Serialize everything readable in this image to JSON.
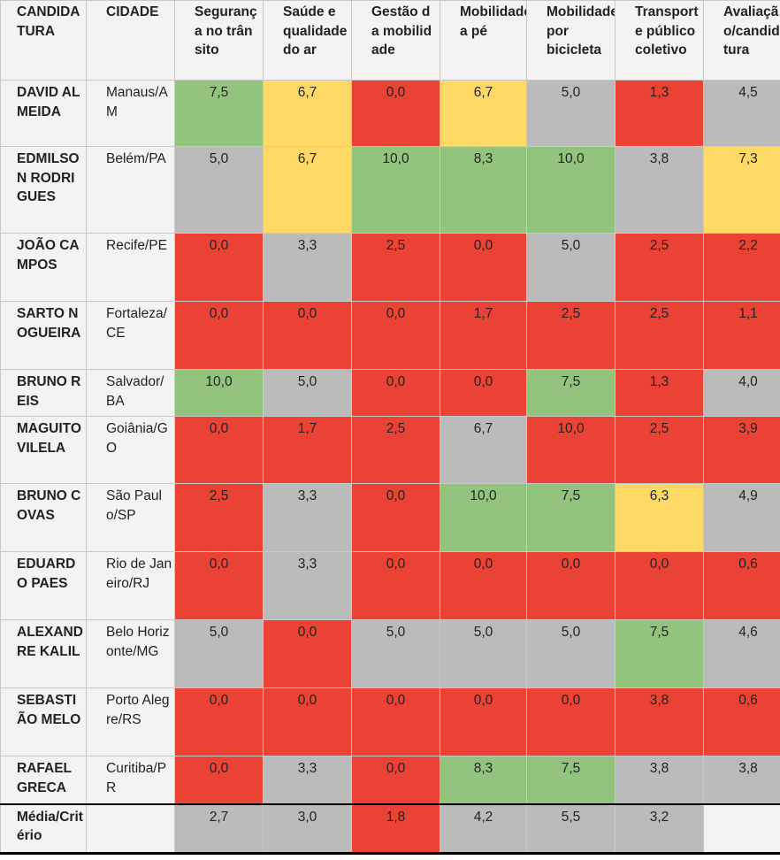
{
  "headers": [
    "CANDIDATURA",
    "CIDADE",
    "Segurança no trânsito",
    "Saúde e qualidade do ar",
    "Gestão da mobilidade",
    "Mobilidade a pé",
    "Mobilidade por bicicleta",
    "Transporte público coletivo",
    "Avaliação/candidatura"
  ],
  "rows": [
    {
      "name": "DAVID ALMEIDA",
      "city": "Manaus/AM",
      "values": [
        "7,5",
        "6,7",
        "0,0",
        "6,7",
        "5,0",
        "1,3",
        "4,5"
      ],
      "colors": [
        "green",
        "yellow",
        "red",
        "yellow",
        "gray",
        "red",
        "gray"
      ]
    },
    {
      "name": "EDMILSON RODRIGUES",
      "city": "Belém/PA",
      "values": [
        "5,0",
        "6,7",
        "10,0",
        "8,3",
        "10,0",
        "3,8",
        "7,3"
      ],
      "colors": [
        "gray",
        "yellow",
        "green",
        "green",
        "green",
        "gray",
        "yellow"
      ]
    },
    {
      "name": "JOÃO CAMPOS",
      "city": "Recife/PE",
      "values": [
        "0,0",
        "3,3",
        "2,5",
        "0,0",
        "5,0",
        "2,5",
        "2,2"
      ],
      "colors": [
        "red",
        "gray",
        "red",
        "red",
        "gray",
        "red",
        "red"
      ]
    },
    {
      "name": "SARTO NOGUEIRA",
      "city": "Fortaleza/CE",
      "values": [
        "0,0",
        "0,0",
        "0,0",
        "1,7",
        "2,5",
        "2,5",
        "1,1"
      ],
      "colors": [
        "red",
        "red",
        "red",
        "red",
        "red",
        "red",
        "red"
      ]
    },
    {
      "name": "BRUNO REIS",
      "city": "Salvador/BA",
      "values": [
        "10,0",
        "5,0",
        "0,0",
        "0,0",
        "7,5",
        "1,3",
        "4,0"
      ],
      "colors": [
        "green",
        "gray",
        "red",
        "red",
        "green",
        "red",
        "gray"
      ]
    },
    {
      "name": "MAGUITO VILELA",
      "city": "Goiânia/GO",
      "values": [
        "0,0",
        "1,7",
        "2,5",
        "6,7",
        "10,0",
        "2,5",
        "3,9"
      ],
      "colors": [
        "red",
        "red",
        "red",
        "gray",
        "red",
        "red",
        "red"
      ]
    },
    {
      "name": "BRUNO COVAS",
      "city": "São Paulo/SP",
      "values": [
        "2,5",
        "3,3",
        "0,0",
        "10,0",
        "7,5",
        "6,3",
        "4,9"
      ],
      "colors": [
        "red",
        "gray",
        "red",
        "green",
        "green",
        "yellow",
        "gray"
      ]
    },
    {
      "name": "EDUARDO PAES",
      "city": "Rio de Janeiro/RJ",
      "values": [
        "0,0",
        "3,3",
        "0,0",
        "0,0",
        "0,0",
        "0,0",
        "0,6"
      ],
      "colors": [
        "red",
        "gray",
        "red",
        "red",
        "red",
        "red",
        "red"
      ]
    },
    {
      "name": "ALEXANDRE KALIL",
      "city": "Belo Horizonte/MG",
      "values": [
        "5,0",
        "0,0",
        "5,0",
        "5,0",
        "5,0",
        "7,5",
        "4,6"
      ],
      "colors": [
        "gray",
        "red",
        "gray",
        "gray",
        "gray",
        "green",
        "gray"
      ]
    },
    {
      "name": "SEBASTIÃO MELO",
      "city": "Porto Alegre/RS",
      "values": [
        "0,0",
        "0,0",
        "0,0",
        "0,0",
        "0,0",
        "3,8",
        "0,6"
      ],
      "colors": [
        "red",
        "red",
        "red",
        "red",
        "red",
        "red",
        "red"
      ]
    },
    {
      "name": "RAFAEL GRECA",
      "city": "Curitiba/PR",
      "values": [
        "0,0",
        "3,3",
        "0,0",
        "8,3",
        "7,5",
        "3,8",
        "3,8"
      ],
      "colors": [
        "red",
        "gray",
        "red",
        "green",
        "green",
        "gray",
        "gray"
      ]
    }
  ],
  "footer": {
    "label": "Média/Critério",
    "city": "",
    "values": [
      "2,7",
      "3,0",
      "1,8",
      "4,2",
      "5,5",
      "3,2",
      ""
    ],
    "colors": [
      "gray",
      "gray",
      "red",
      "gray",
      "gray",
      "gray",
      "blank"
    ]
  },
  "colors": {
    "green": "#93c47d",
    "yellow": "#ffd966",
    "red": "#ea4335",
    "gray": "#bbbbbb",
    "header_bg": "#f3f3f3"
  }
}
